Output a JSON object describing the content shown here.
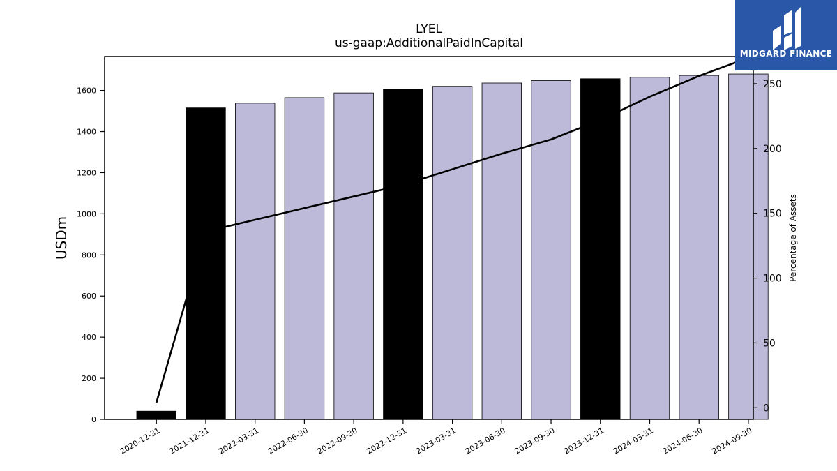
{
  "chart_data": {
    "type": "bar",
    "title": "LYEL",
    "subtitle": "us-gaap:AdditionalPaidInCapital",
    "ylabel": "USDm",
    "y2label": "Percentage of Assets",
    "categories": [
      "2020-12-31",
      "2021-12-31",
      "2022-03-31",
      "2022-06-30",
      "2022-09-30",
      "2022-12-31",
      "2023-03-31",
      "2023-06-30",
      "2023-09-30",
      "2023-12-31",
      "2024-03-31",
      "2024-06-30",
      "2024-09-30"
    ],
    "series": [
      {
        "type": "bar",
        "axis": "left",
        "values": [
          40,
          1515,
          1538,
          1565,
          1588,
          1605,
          1620,
          1636,
          1648,
          1657,
          1664,
          1673,
          1680
        ],
        "colors": [
          "#000000",
          "#000000",
          "#bdbad9",
          "#bdbad9",
          "#bdbad9",
          "#000000",
          "#bdbad9",
          "#bdbad9",
          "#bdbad9",
          "#000000",
          "#bdbad9",
          "#bdbad9",
          "#bdbad9"
        ]
      },
      {
        "type": "line",
        "axis": "right",
        "color": "#000000",
        "values": [
          4,
          136,
          145,
          154,
          163,
          172,
          184,
          196,
          207,
          222,
          240,
          256,
          270
        ]
      }
    ],
    "ylim": [
      0,
      1765
    ],
    "yticks": [
      0,
      200,
      400,
      600,
      800,
      1000,
      1200,
      1400,
      1600
    ],
    "y2lim": [
      -9,
      271
    ],
    "y2ticks": [
      0,
      50,
      100,
      150,
      200,
      250
    ],
    "grid": false
  },
  "logo": {
    "text": "MIDGARD FINANCE",
    "color": "#2b57a8"
  }
}
